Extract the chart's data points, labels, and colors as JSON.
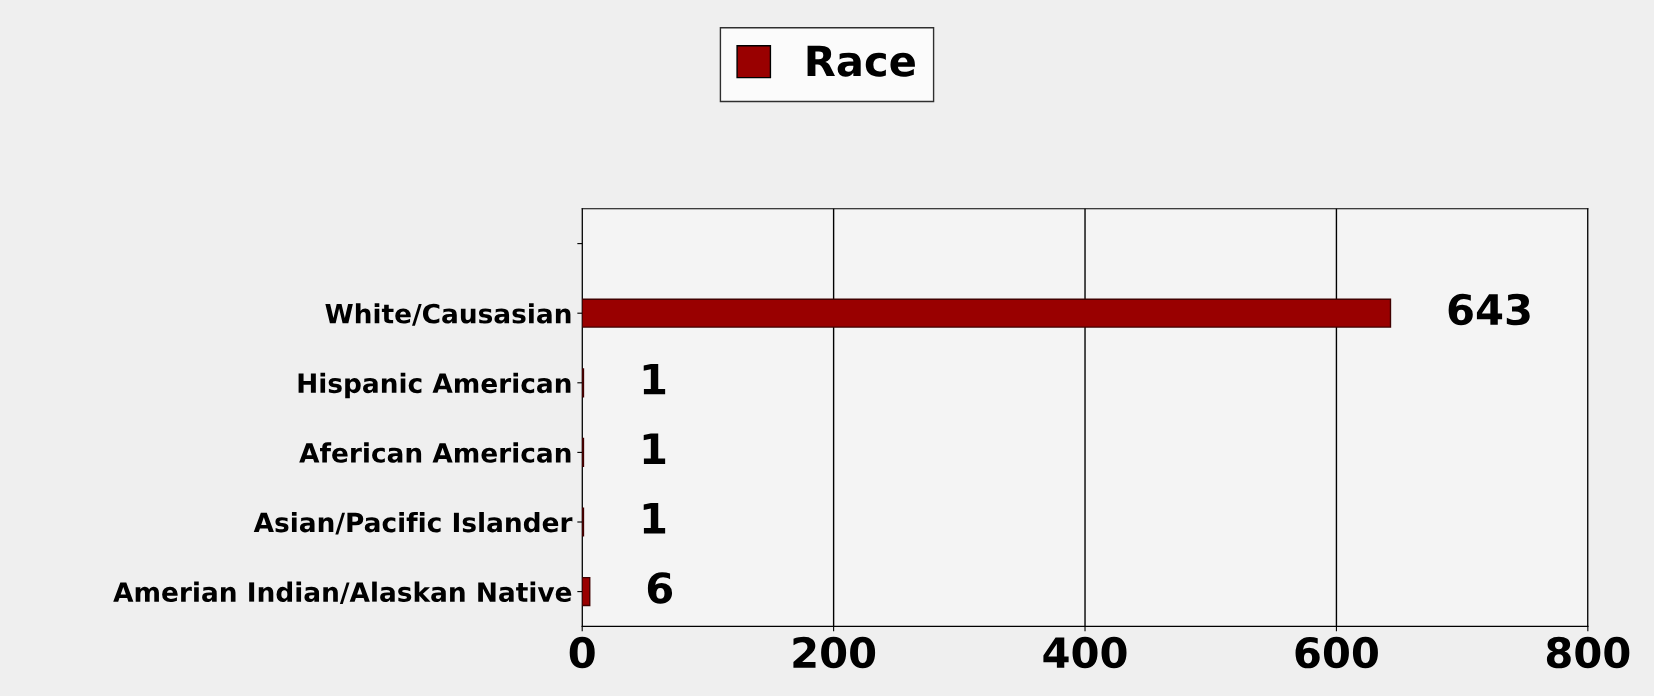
{
  "chart_data": {
    "type": "bar",
    "orientation": "horizontal",
    "categories": [
      null,
      "White/Causasian",
      "Hispanic American",
      "Aferican American",
      "Asian/Pacific Islander",
      "Amerian Indian/Alaskan Native"
    ],
    "series": [
      {
        "name": "Race",
        "color": "#990000",
        "values": [
          null,
          643,
          1,
          1,
          1,
          6
        ]
      }
    ],
    "xlim": [
      0,
      800
    ],
    "xticks": [
      0,
      200,
      400,
      600,
      800
    ],
    "grid": "x",
    "legend": "top",
    "data_labels": true
  }
}
